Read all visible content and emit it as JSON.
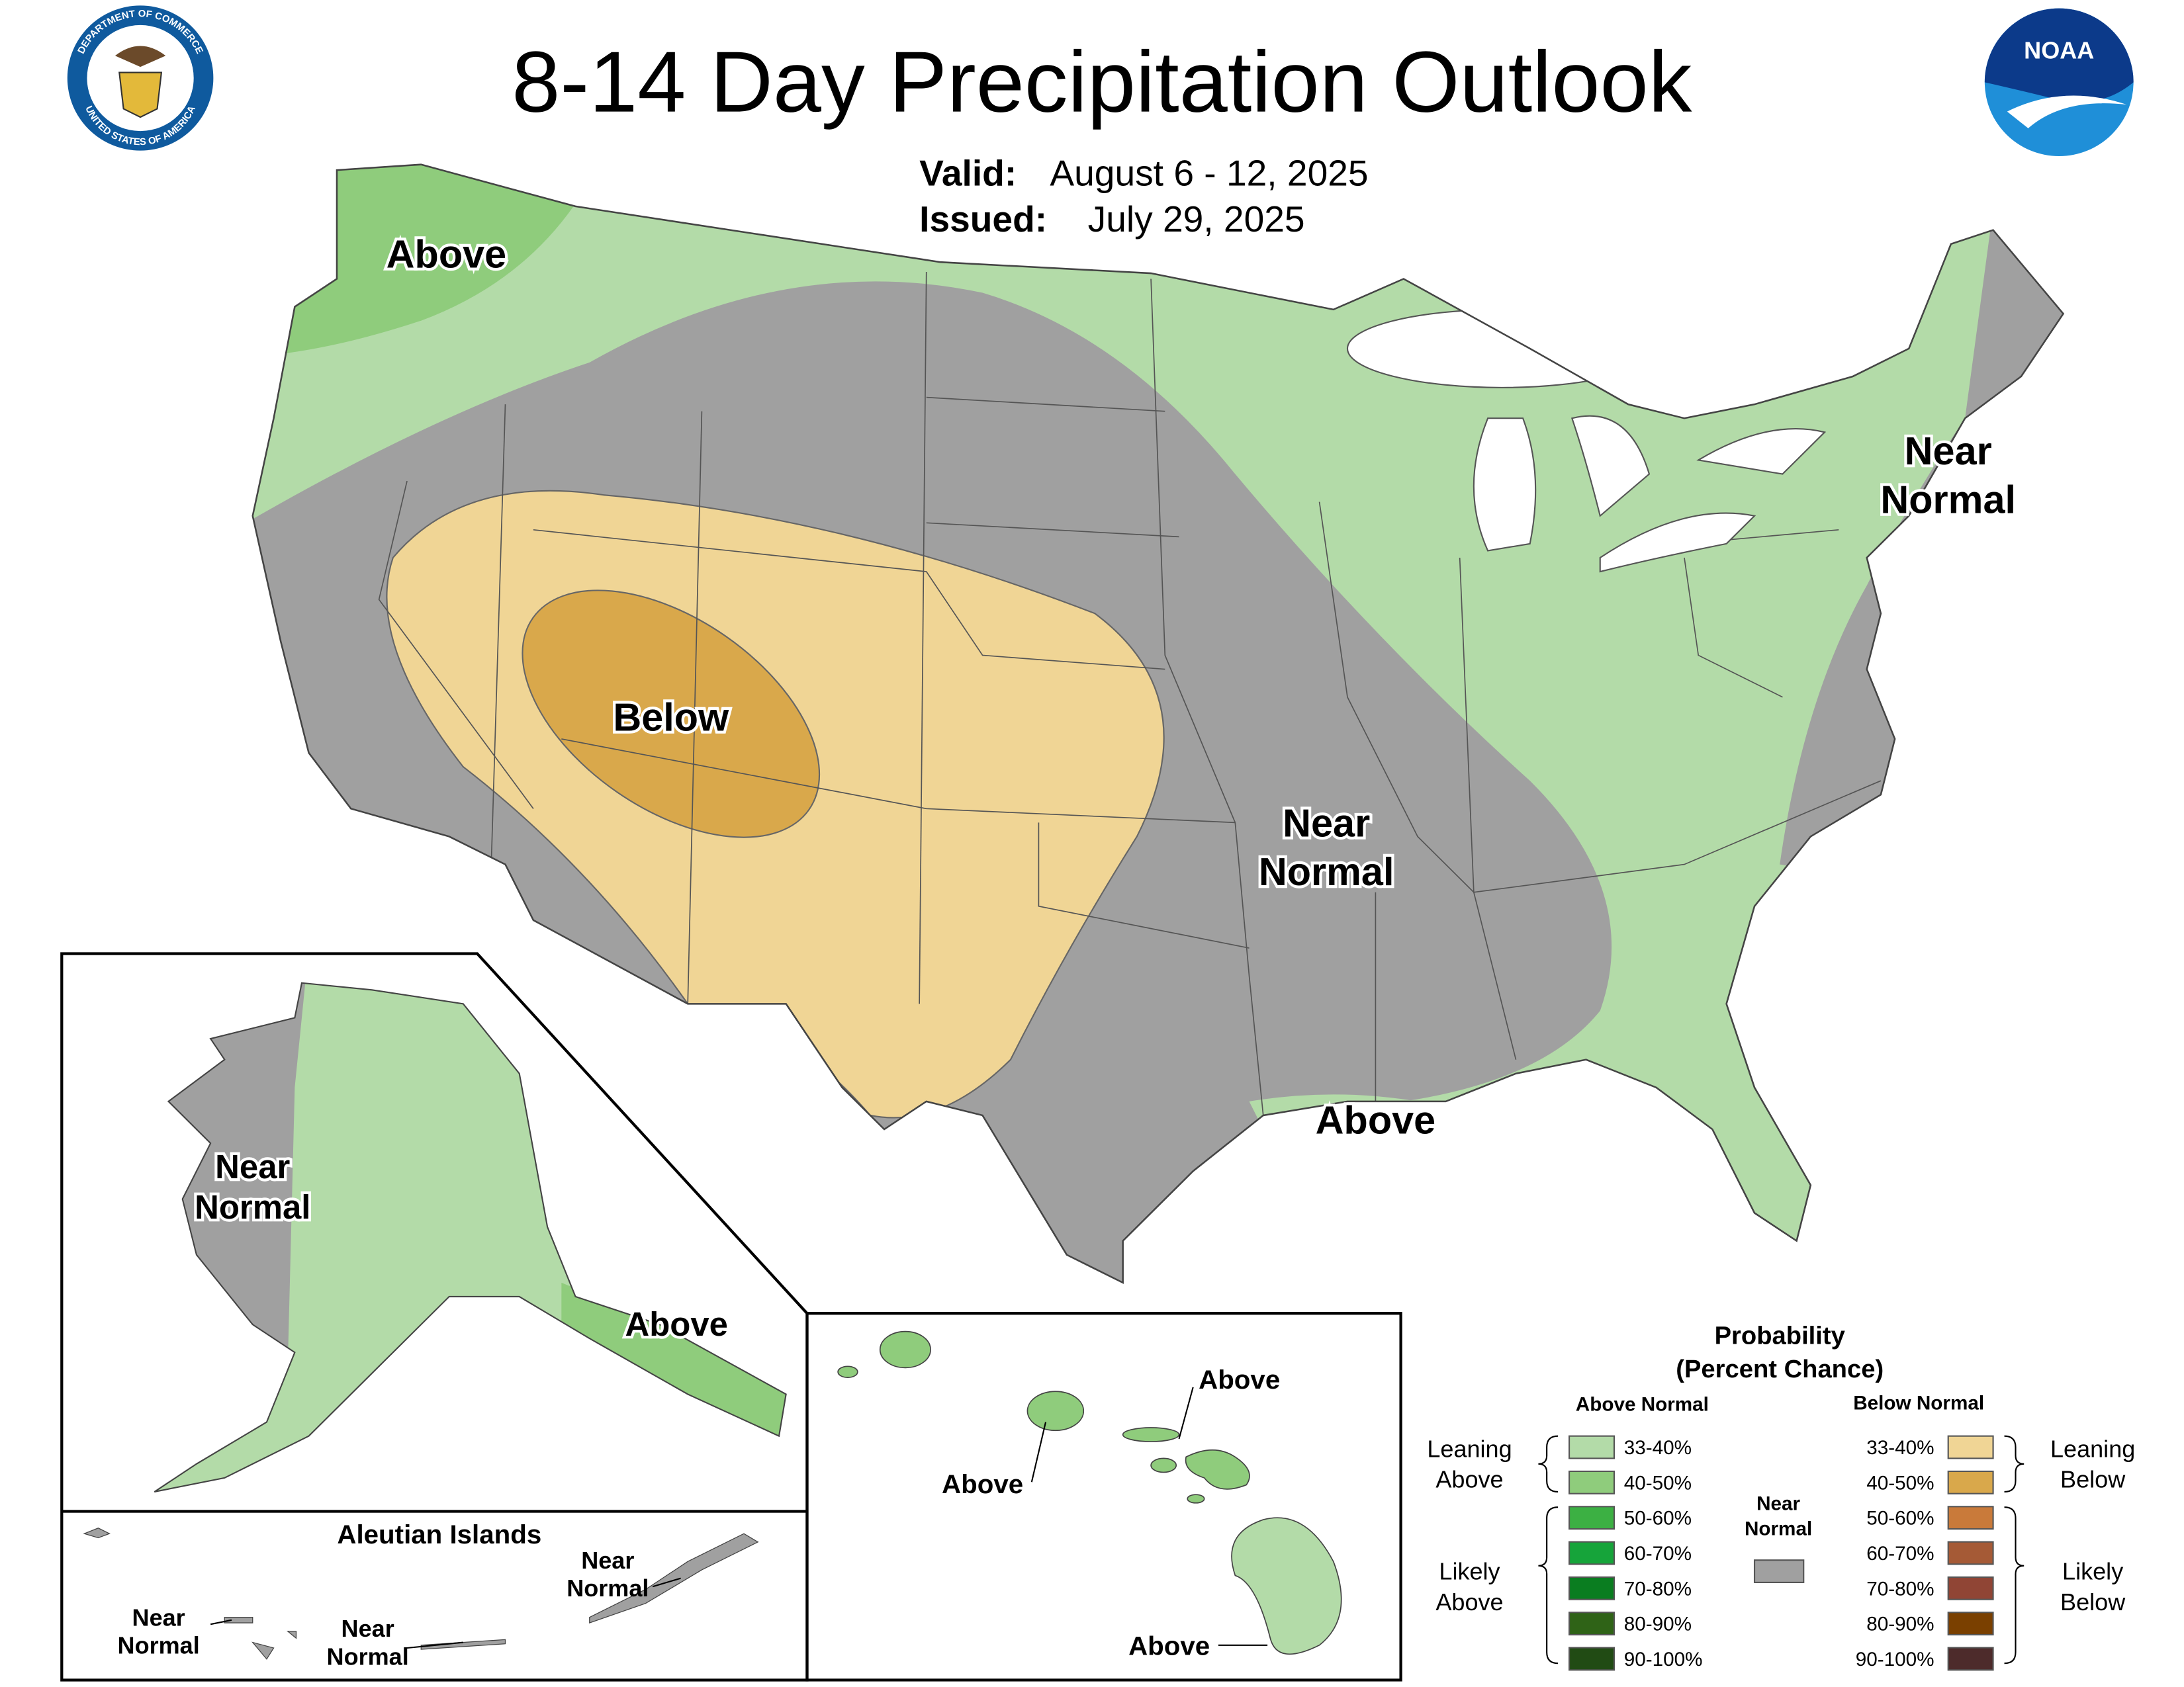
{
  "header": {
    "title": "8-14 Day Precipitation Outlook",
    "valid_label": "Valid:",
    "valid": "August 6 - 12, 2025",
    "issued_label": "Issued:",
    "issued": "July 29, 2025",
    "seal_top": "DEPARTMENT OF COMMERCE",
    "seal_bottom": "UNITED STATES OF AMERICA",
    "logo": "NOAA"
  },
  "map_labels": [
    {
      "lines": [
        "Above"
      ]
    },
    {
      "lines": [
        "Below"
      ]
    },
    {
      "lines": [
        "Near",
        "Normal"
      ]
    },
    {
      "lines": [
        "Near",
        "Normal"
      ]
    },
    {
      "lines": [
        "Above"
      ]
    }
  ],
  "alaska": {
    "labels": [
      {
        "lines": [
          "Near",
          "Normal"
        ]
      },
      {
        "lines": [
          "Above"
        ]
      }
    ],
    "aleutian_title": "Aleutian Islands",
    "aleutian_labels": [
      {
        "lines": [
          "Near",
          "Normal"
        ]
      },
      {
        "lines": [
          "Near",
          "Normal"
        ]
      },
      {
        "lines": [
          "Near",
          "Normal"
        ]
      }
    ]
  },
  "hawaii": {
    "labels": [
      "Above",
      "Above",
      "Above"
    ]
  },
  "legend": {
    "title": "Probability",
    "subtitle": "(Percent Chance)",
    "above_heading": "Above Normal",
    "below_heading": "Below Normal",
    "near": {
      "lines": [
        "Near",
        "Normal"
      ],
      "color": "#a0a0a0"
    },
    "above_groups": [
      {
        "lines": [
          "Leaning",
          "Above"
        ]
      },
      {
        "lines": [
          "Likely",
          "Above"
        ]
      }
    ],
    "below_groups": [
      {
        "lines": [
          "Leaning",
          "Below"
        ]
      },
      {
        "lines": [
          "Likely",
          "Below"
        ]
      }
    ],
    "above": [
      {
        "range": "33-40%",
        "color": "#b3dba8"
      },
      {
        "range": "40-50%",
        "color": "#8fcc7c"
      },
      {
        "range": "50-60%",
        "color": "#3cb043"
      },
      {
        "range": "60-70%",
        "color": "#16a43a"
      },
      {
        "range": "70-80%",
        "color": "#0a7d20"
      },
      {
        "range": "80-90%",
        "color": "#2f6317"
      },
      {
        "range": "90-100%",
        "color": "#214b14"
      }
    ],
    "below": [
      {
        "range": "33-40%",
        "color": "#f0d595"
      },
      {
        "range": "40-50%",
        "color": "#d9a84b"
      },
      {
        "range": "50-60%",
        "color": "#c97a3a"
      },
      {
        "range": "60-70%",
        "color": "#a55a36"
      },
      {
        "range": "70-80%",
        "color": "#904535"
      },
      {
        "range": "80-90%",
        "color": "#7a4000"
      },
      {
        "range": "90-100%",
        "color": "#4d2b2b"
      }
    ]
  }
}
